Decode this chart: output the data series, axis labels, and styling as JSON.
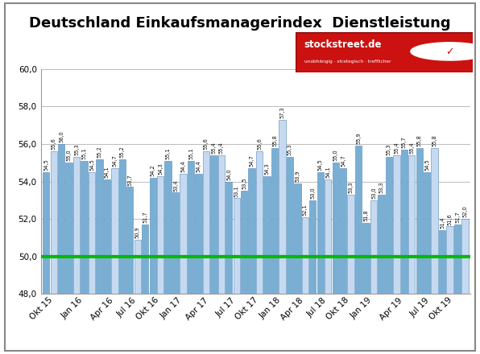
{
  "title": "Deutschland Einkaufsmanagerindex  Dienstleistung",
  "flat_values": [
    54.5,
    55.6,
    56.0,
    55.0,
    55.3,
    55.1,
    54.5,
    55.2,
    54.1,
    54.7,
    55.2,
    53.7,
    50.9,
    51.7,
    54.2,
    54.3,
    55.1,
    53.4,
    54.4,
    55.1,
    54.4,
    55.6,
    55.4,
    55.4,
    54.0,
    53.1,
    53.5,
    54.7,
    55.6,
    54.3,
    55.8,
    57.3,
    55.3,
    53.9,
    52.1,
    53.0,
    54.5,
    54.1,
    55.0,
    54.7,
    53.3,
    55.9,
    51.8,
    53.0,
    53.3,
    55.3,
    55.4,
    55.7,
    55.4,
    55.8,
    54.5,
    55.8,
    51.4,
    51.6,
    51.7,
    52.0
  ],
  "group_sizes": [
    3,
    5,
    3,
    3,
    3,
    3,
    4,
    3,
    3,
    3,
    3,
    3,
    3,
    3,
    5,
    2,
    4
  ],
  "group_labels": [
    "Okt 15",
    "Jan 16",
    "Apr 16",
    "Jul 16",
    "Okt 16",
    "Jan 17",
    "Apr 17",
    "Jul 17",
    "Okt 17",
    "Jan 18",
    "Apr 18",
    "Jul 18",
    "Okt 18",
    "Jan 19",
    "Apr 19",
    "Jul 19",
    "Okt 19"
  ],
  "ylim": [
    48.0,
    60.0
  ],
  "yticks": [
    48.0,
    50.0,
    52.0,
    54.0,
    56.0,
    58.0,
    60.0
  ],
  "ytick_labels": [
    "48,0",
    "50,0",
    "52,0",
    "54,0",
    "56,0",
    "58,0",
    "60,0"
  ],
  "hline_y": 50.0,
  "hline_color": "#00bb00",
  "bar_color_main": "#7aafd4",
  "bar_color_light": "#c5daf0",
  "bar_edge_color": "#5588bb",
  "background_color": "#ffffff",
  "plot_bg_color": "#ffffff",
  "grid_color": "#bbbbbb",
  "title_fontsize": 13,
  "label_fontsize": 4.8,
  "tick_fontsize": 7.5
}
